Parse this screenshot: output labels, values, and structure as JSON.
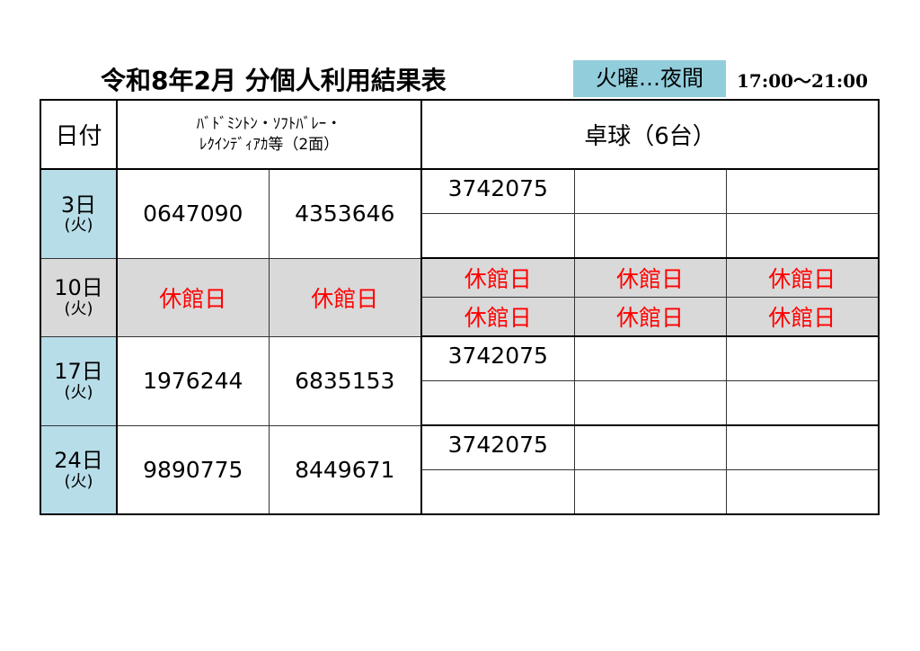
{
  "title": "令和8年2月 分個人利用結果表",
  "badge": "火曜…夜間",
  "time": "17:00～21:00",
  "headers": {
    "date": "日付",
    "badminton_l1": "ﾊﾞﾄﾞﾐﾝﾄﾝ・ｿﾌﾄﾊﾞﾚｰ・",
    "badminton_l2": "ﾚｸｲﾝﾃﾞｨｱｶ等（2面）",
    "tabletennis": "卓球（6台）"
  },
  "closed_label": "休館日",
  "rows": [
    {
      "date": "3日",
      "dow": "(火)",
      "b1": "0647090",
      "b2": "4353646",
      "t": [
        "3742075",
        "",
        "",
        "",
        "",
        ""
      ]
    },
    {
      "date": "10日",
      "dow": "(火)",
      "closed": true
    },
    {
      "date": "17日",
      "dow": "(火)",
      "b1": "1976244",
      "b2": "6835153",
      "t": [
        "3742075",
        "",
        "",
        "",
        "",
        ""
      ]
    },
    {
      "date": "24日",
      "dow": "(火)",
      "b1": "9890775",
      "b2": "8449671",
      "t": [
        "3742075",
        "",
        "",
        "",
        "",
        ""
      ]
    }
  ],
  "colors": {
    "date_bg": "#b7dde8",
    "closed_bg": "#d9d9d9",
    "closed_text": "#ff0000",
    "badge_bg": "#92cddc"
  }
}
